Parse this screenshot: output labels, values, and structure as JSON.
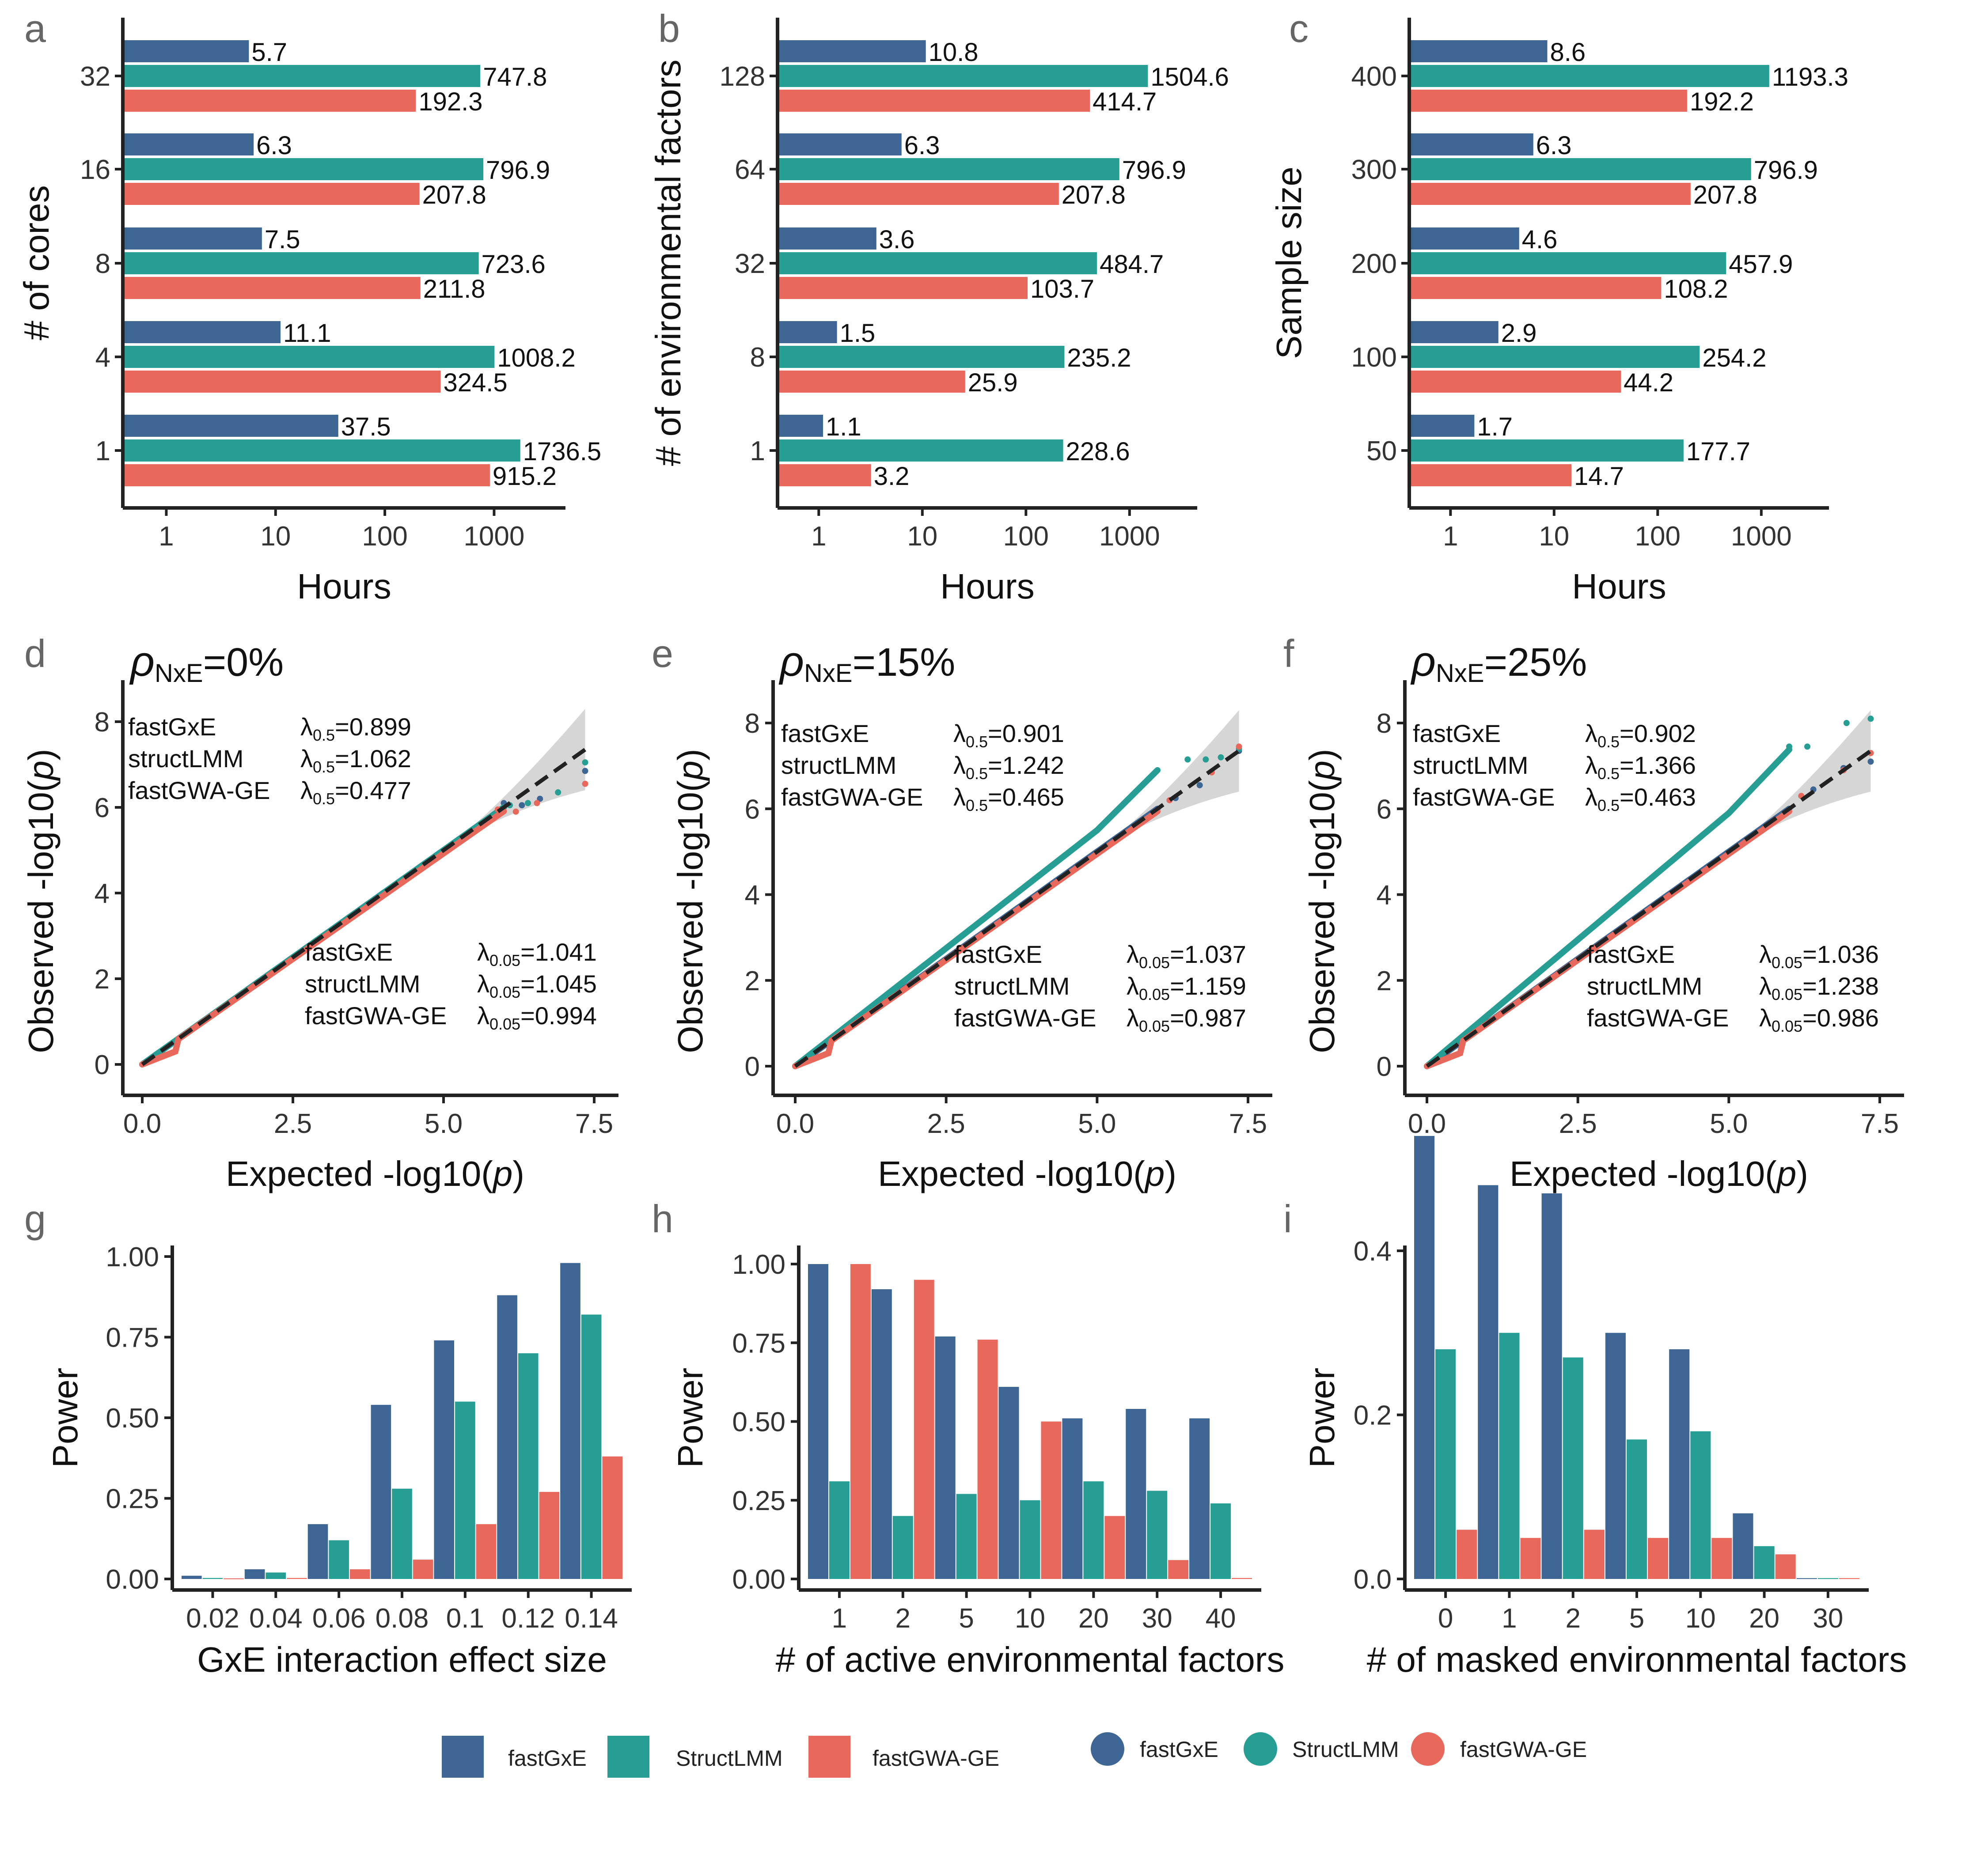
{
  "colors": {
    "fastGxE": "#3E6694",
    "StructLMM": "#269E94",
    "fastGWA-GE": "#E8695C",
    "axis": "#222222",
    "band": "#C8C8C8"
  },
  "legend": {
    "bars": [
      "fastGxE",
      "StructLMM",
      "fastGWA-GE"
    ],
    "points": [
      "fastGxE",
      "StructLMM",
      "fastGWA-GE"
    ]
  },
  "chart_data": [
    {
      "panel": "a",
      "type": "bar",
      "orientation": "horizontal",
      "xscale": "log10",
      "xlabel": "Hours",
      "ylabel": "# of cores",
      "xticks": [
        "1",
        "10",
        "100",
        "1000"
      ],
      "xlim": [
        0.4,
        4500
      ],
      "categories": [
        "32",
        "16",
        "8",
        "4",
        "1"
      ],
      "series": [
        {
          "name": "fastGxE",
          "values": [
            5.7,
            6.3,
            7.5,
            11.1,
            37.5
          ],
          "labels": [
            "5.7",
            "6.3",
            "7.5",
            "11.1",
            "37.5"
          ]
        },
        {
          "name": "StructLMM",
          "values": [
            747.8,
            796.9,
            723.6,
            1008.2,
            1736.5
          ],
          "labels": [
            "747.8",
            "796.9",
            "723.6",
            "1008.2",
            "1736.5"
          ]
        },
        {
          "name": "fastGWA-GE",
          "values": [
            192.3,
            207.8,
            211.8,
            324.5,
            915.2
          ],
          "labels": [
            "192.3",
            "207.8",
            "211.8",
            "324.5",
            "915.2"
          ]
        }
      ]
    },
    {
      "panel": "b",
      "type": "bar",
      "orientation": "horizontal",
      "xscale": "log10",
      "xlabel": "Hours",
      "ylabel": "# of environmental factors",
      "xticks": [
        "1",
        "10",
        "100",
        "1000"
      ],
      "xlim": [
        0.4,
        4500
      ],
      "categories": [
        "128",
        "64",
        "32",
        "8",
        "1"
      ],
      "series": [
        {
          "name": "fastGxE",
          "values": [
            10.8,
            6.3,
            3.6,
            1.5,
            1.1
          ],
          "labels": [
            "10.8",
            "6.3",
            "3.6",
            "1.5",
            "1.1"
          ]
        },
        {
          "name": "StructLMM",
          "values": [
            1504.6,
            796.9,
            484.7,
            235.2,
            228.6
          ],
          "labels": [
            "1504.6",
            "796.9",
            "484.7",
            "235.2",
            "228.6"
          ]
        },
        {
          "name": "fastGWA-GE",
          "values": [
            414.7,
            207.8,
            103.7,
            25.9,
            3.2
          ],
          "labels": [
            "414.7",
            "207.8",
            "103.7",
            "25.9",
            "3.2"
          ]
        }
      ]
    },
    {
      "panel": "c",
      "type": "bar",
      "orientation": "horizontal",
      "xscale": "log10",
      "xlabel": "Hours",
      "ylabel": "Sample size",
      "xticks": [
        "1",
        "10",
        "100",
        "1000"
      ],
      "xlim": [
        0.4,
        4500
      ],
      "categories": [
        "400",
        "300",
        "200",
        "100",
        "50"
      ],
      "series": [
        {
          "name": "fastGxE",
          "values": [
            8.6,
            6.3,
            4.6,
            2.9,
            1.7
          ],
          "labels": [
            "8.6",
            "6.3",
            "4.6",
            "2.9",
            "1.7"
          ]
        },
        {
          "name": "StructLMM",
          "values": [
            1193.3,
            796.9,
            457.9,
            254.2,
            177.7
          ],
          "labels": [
            "1193.3",
            "796.9",
            "457.9",
            "254.2",
            "177.7"
          ]
        },
        {
          "name": "fastGWA-GE",
          "values": [
            192.2,
            207.8,
            108.2,
            44.2,
            14.7
          ],
          "labels": [
            "192.2",
            "207.8",
            "108.2",
            "44.2",
            "14.7"
          ]
        }
      ]
    },
    {
      "panel": "d",
      "type": "scatter",
      "title_sym": "ρ",
      "title_sub": "NxE",
      "title_val": "=0%",
      "xlabel": "Expected -log10(",
      "xlabel_p": "p",
      "xlabel_end": ")",
      "ylabel": "Observed -log10(",
      "ylabel_p": "p",
      "ylabel_end": ")",
      "xlim": [
        -0.4,
        7.6
      ],
      "ylim": [
        -0.2,
        9.0
      ],
      "xticks": [
        "0.0",
        "2.5",
        "5.0",
        "7.5"
      ],
      "yticks": [
        "0",
        "2",
        "4",
        "6",
        "8"
      ],
      "lambda_top": {
        "sub": "0.5",
        "rows": [
          {
            "method": "fastGxE",
            "value": "=0.899"
          },
          {
            "method": "structLMM",
            "value": "=1.062"
          },
          {
            "method": "fastGWA-GE",
            "value": "=0.477"
          }
        ]
      },
      "lambda_bottom": {
        "sub": "0.05",
        "rows": [
          {
            "method": "fastGxE",
            "value": "=1.041"
          },
          {
            "method": "structLMM",
            "value": "=1.045"
          },
          {
            "method": "fastGWA-GE",
            "value": "=0.994"
          }
        ]
      },
      "slopes": {
        "fastGxE": 1.0,
        "StructLMM": 1.0,
        "fastGWA-GE": 0.985
      },
      "tail_points": {
        "fastGxE": [
          [
            6.0,
            6.1
          ],
          [
            6.3,
            6.05
          ],
          [
            6.6,
            6.2
          ],
          [
            7.35,
            6.85
          ]
        ],
        "StructLMM": [
          [
            6.1,
            6.05
          ],
          [
            6.4,
            6.1
          ],
          [
            6.9,
            6.35
          ],
          [
            7.35,
            7.05
          ]
        ],
        "fastGWA-GE": [
          [
            5.9,
            5.95
          ],
          [
            6.2,
            5.9
          ],
          [
            6.55,
            6.1
          ],
          [
            7.35,
            6.55
          ]
        ]
      }
    },
    {
      "panel": "e",
      "type": "scatter",
      "title_sym": "ρ",
      "title_sub": "NxE",
      "title_val": "=15%",
      "xlabel": "Expected -log10(",
      "xlabel_p": "p",
      "xlabel_end": ")",
      "ylabel": "Observed -log10(",
      "ylabel_p": "p",
      "ylabel_end": ")",
      "xlim": [
        -0.4,
        7.6
      ],
      "ylim": [
        -0.2,
        9.0
      ],
      "xticks": [
        "0.0",
        "2.5",
        "5.0",
        "7.5"
      ],
      "yticks": [
        "0",
        "2",
        "4",
        "6",
        "8"
      ],
      "lambda_top": {
        "sub": "0.5",
        "rows": [
          {
            "method": "fastGxE",
            "value": "=0.901"
          },
          {
            "method": "structLMM",
            "value": "=1.242"
          },
          {
            "method": "fastGWA-GE",
            "value": "=0.465"
          }
        ]
      },
      "lambda_bottom": {
        "sub": "0.05",
        "rows": [
          {
            "method": "fastGxE",
            "value": "=1.037"
          },
          {
            "method": "structLMM",
            "value": "=1.159"
          },
          {
            "method": "fastGWA-GE",
            "value": "=0.987"
          }
        ]
      },
      "slopes": {
        "fastGxE": 1.0,
        "StructLMM": 1.1,
        "fastGWA-GE": 0.99
      },
      "tail_points": {
        "fastGxE": [
          [
            6.3,
            6.25
          ],
          [
            6.7,
            6.55
          ],
          [
            7.35,
            7.35
          ]
        ],
        "StructLMM": [
          [
            6.5,
            7.15
          ],
          [
            6.8,
            7.15
          ],
          [
            7.05,
            7.2
          ],
          [
            7.35,
            7.4
          ]
        ],
        "fastGWA-GE": [
          [
            6.2,
            6.2
          ],
          [
            6.9,
            6.85
          ],
          [
            7.35,
            7.45
          ]
        ]
      }
    },
    {
      "panel": "f",
      "type": "scatter",
      "title_sym": "ρ",
      "title_sub": "NxE",
      "title_val": "=25%",
      "xlabel": "Expected -log10(",
      "xlabel_p": "p",
      "xlabel_end": ")",
      "ylabel": "Observed -log10(",
      "ylabel_p": "p",
      "ylabel_end": ")",
      "xlim": [
        -0.4,
        7.6
      ],
      "ylim": [
        -0.2,
        9.0
      ],
      "xticks": [
        "0.0",
        "2.5",
        "5.0",
        "7.5"
      ],
      "yticks": [
        "0",
        "2",
        "4",
        "6",
        "8"
      ],
      "lambda_top": {
        "sub": "0.5",
        "rows": [
          {
            "method": "fastGxE",
            "value": "=0.902"
          },
          {
            "method": "structLMM",
            "value": "=1.366"
          },
          {
            "method": "fastGWA-GE",
            "value": "=0.463"
          }
        ]
      },
      "lambda_bottom": {
        "sub": "0.05",
        "rows": [
          {
            "method": "fastGxE",
            "value": "=1.036"
          },
          {
            "method": "structLMM",
            "value": "=1.238"
          },
          {
            "method": "fastGWA-GE",
            "value": "=0.986"
          }
        ]
      },
      "slopes": {
        "fastGxE": 1.0,
        "StructLMM": 1.18,
        "fastGWA-GE": 0.99
      },
      "tail_points": {
        "fastGxE": [
          [
            6.4,
            6.45
          ],
          [
            6.9,
            6.95
          ],
          [
            7.35,
            7.1
          ]
        ],
        "StructLMM": [
          [
            6.0,
            7.45
          ],
          [
            6.3,
            7.45
          ],
          [
            6.95,
            8.0
          ],
          [
            7.35,
            8.1
          ]
        ],
        "fastGWA-GE": [
          [
            6.2,
            6.3
          ],
          [
            6.9,
            6.9
          ],
          [
            7.35,
            7.3
          ]
        ]
      }
    },
    {
      "panel": "g",
      "type": "bar",
      "orientation": "vertical",
      "xlabel": "GxE interaction effect size",
      "ylabel": "Power",
      "ylim": [
        0,
        1.05
      ],
      "yticks": [
        0,
        0.25,
        0.5,
        0.75,
        1.0
      ],
      "ytick_labels": [
        "0.00",
        "0.25",
        "0.50",
        "0.75",
        "1.00"
      ],
      "categories": [
        "0.02",
        "0.04",
        "0.06",
        "0.08",
        "0.1",
        "0.12",
        "0.14"
      ],
      "series": [
        {
          "name": "fastGxE",
          "values": [
            0.01,
            0.03,
            0.17,
            0.54,
            0.74,
            0.88,
            0.98
          ]
        },
        {
          "name": "StructLMM",
          "values": [
            0.003,
            0.02,
            0.12,
            0.28,
            0.55,
            0.7,
            0.82
          ]
        },
        {
          "name": "fastGWA-GE",
          "values": [
            0.002,
            0.003,
            0.03,
            0.06,
            0.17,
            0.27,
            0.38
          ]
        }
      ]
    },
    {
      "panel": "h",
      "type": "bar",
      "orientation": "vertical",
      "xlabel": "# of active environmental factors",
      "ylabel": "Power",
      "ylim": [
        0,
        1.05
      ],
      "yticks": [
        0,
        0.25,
        0.5,
        0.75,
        1.0
      ],
      "ytick_labels": [
        "0.00",
        "0.25",
        "0.50",
        "0.75",
        "1.00"
      ],
      "categories": [
        "1",
        "2",
        "5",
        "10",
        "20",
        "30",
        "40"
      ],
      "series": [
        {
          "name": "fastGxE",
          "values": [
            1.0,
            0.92,
            0.77,
            0.61,
            0.51,
            0.54,
            0.51
          ]
        },
        {
          "name": "StructLMM",
          "values": [
            0.31,
            0.2,
            0.27,
            0.25,
            0.31,
            0.28,
            0.24
          ]
        },
        {
          "name": "fastGWA-GE",
          "values": [
            1.0,
            0.95,
            0.76,
            0.5,
            0.2,
            0.06,
            0.003
          ]
        }
      ]
    },
    {
      "panel": "i",
      "type": "bar",
      "orientation": "vertical",
      "xlabel": "# of masked environmental factors",
      "ylabel": "Power",
      "ylim": [
        0,
        0.55
      ],
      "yticks": [
        0,
        0.2,
        0.4
      ],
      "ytick_labels": [
        "0.0",
        "0.2",
        "0.4"
      ],
      "categories": [
        "0",
        "1",
        "2",
        "5",
        "10",
        "20",
        "30"
      ],
      "series": [
        {
          "name": "fastGxE",
          "values": [
            0.54,
            0.48,
            0.47,
            0.3,
            0.28,
            0.08,
            0.001
          ]
        },
        {
          "name": "StructLMM",
          "values": [
            0.28,
            0.3,
            0.27,
            0.17,
            0.18,
            0.04,
            0.001
          ]
        },
        {
          "name": "fastGWA-GE",
          "values": [
            0.06,
            0.05,
            0.06,
            0.05,
            0.05,
            0.03,
            0.001
          ]
        }
      ]
    }
  ]
}
